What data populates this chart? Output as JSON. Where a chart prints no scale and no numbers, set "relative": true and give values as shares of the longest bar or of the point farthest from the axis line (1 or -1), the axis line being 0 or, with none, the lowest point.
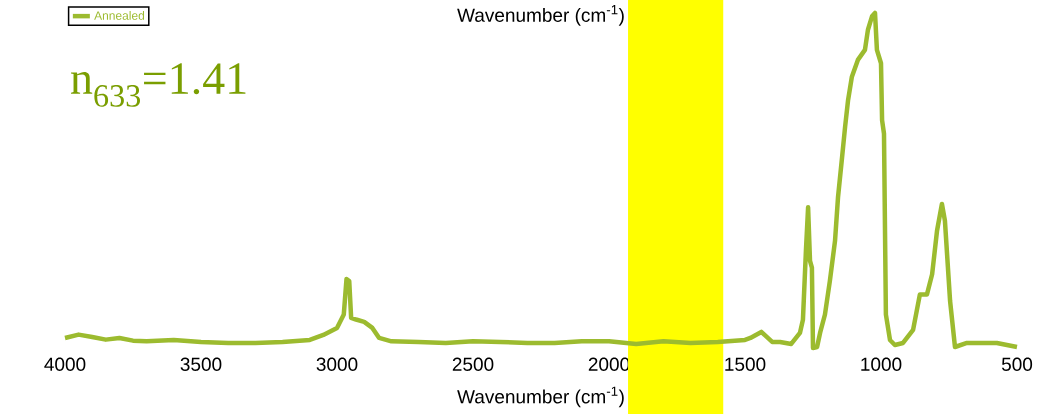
{
  "chart_data": {
    "type": "line",
    "title": "Wavenumber (cm$^{-1}$)",
    "xlabel": "Wavenumber (cm$^{-1}$)",
    "annotations": [
      "n$_{633}$=1.41"
    ],
    "relative": true,
    "legend": "top left",
    "grid": false,
    "marker": "none",
    "line_style": "solid",
    "xlim": [
      4000,
      500
    ],
    "xticks": [
      4000,
      3500,
      3000,
      2500,
      2000,
      1500,
      1000,
      500
    ],
    "bands": [
      {
        "axis": "x",
        "from": 1930,
        "to": 1580,
        "color": "#ffff00"
      }
    ],
    "x": [
      4000,
      3950,
      3900,
      3850,
      3800,
      3750,
      3700,
      3600,
      3500,
      3400,
      3300,
      3200,
      3100,
      3050,
      3000,
      2975,
      2965,
      2955,
      2948,
      2930,
      2900,
      2870,
      2845,
      2800,
      2700,
      2600,
      2500,
      2400,
      2300,
      2200,
      2100,
      2000,
      1900,
      1800,
      1700,
      1600,
      1500,
      1480,
      1440,
      1400,
      1371,
      1330,
      1298,
      1287,
      1276,
      1268,
      1261,
      1254,
      1250,
      1235,
      1224,
      1206,
      1188,
      1169,
      1158,
      1143,
      1132,
      1121,
      1107,
      1085,
      1059,
      1048,
      1033,
      1022,
      1015,
      1000,
      996,
      989,
      982,
      967,
      949,
      919,
      882,
      857,
      831,
      812,
      794,
      776,
      765,
      746,
      728,
      684,
      636,
      574,
      500
    ],
    "series": [
      {
        "name": "Annealed",
        "color": "#9cbb2f",
        "values": [
          0.03,
          0.04,
          0.033,
          0.025,
          0.03,
          0.022,
          0.02,
          0.024,
          0.018,
          0.015,
          0.015,
          0.018,
          0.024,
          0.039,
          0.06,
          0.1,
          0.206,
          0.2,
          0.09,
          0.085,
          0.078,
          0.06,
          0.03,
          0.02,
          0.018,
          0.015,
          0.02,
          0.018,
          0.015,
          0.015,
          0.02,
          0.02,
          0.012,
          0.02,
          0.015,
          0.018,
          0.024,
          0.03,
          0.048,
          0.018,
          0.018,
          0.012,
          0.045,
          0.084,
          0.29,
          0.42,
          0.26,
          0.24,
          0,
          0.003,
          0.045,
          0.1,
          0.2,
          0.32,
          0.45,
          0.57,
          0.66,
          0.74,
          0.81,
          0.86,
          0.89,
          0.95,
          0.99,
          1,
          0.89,
          0.85,
          0.68,
          0.64,
          0.1,
          0.024,
          0.009,
          0.015,
          0.054,
          0.16,
          0.16,
          0.22,
          0.35,
          0.43,
          0.38,
          0.14,
          0.003,
          0.015,
          0.015,
          0.015,
          0.003
        ]
      }
    ]
  }
}
